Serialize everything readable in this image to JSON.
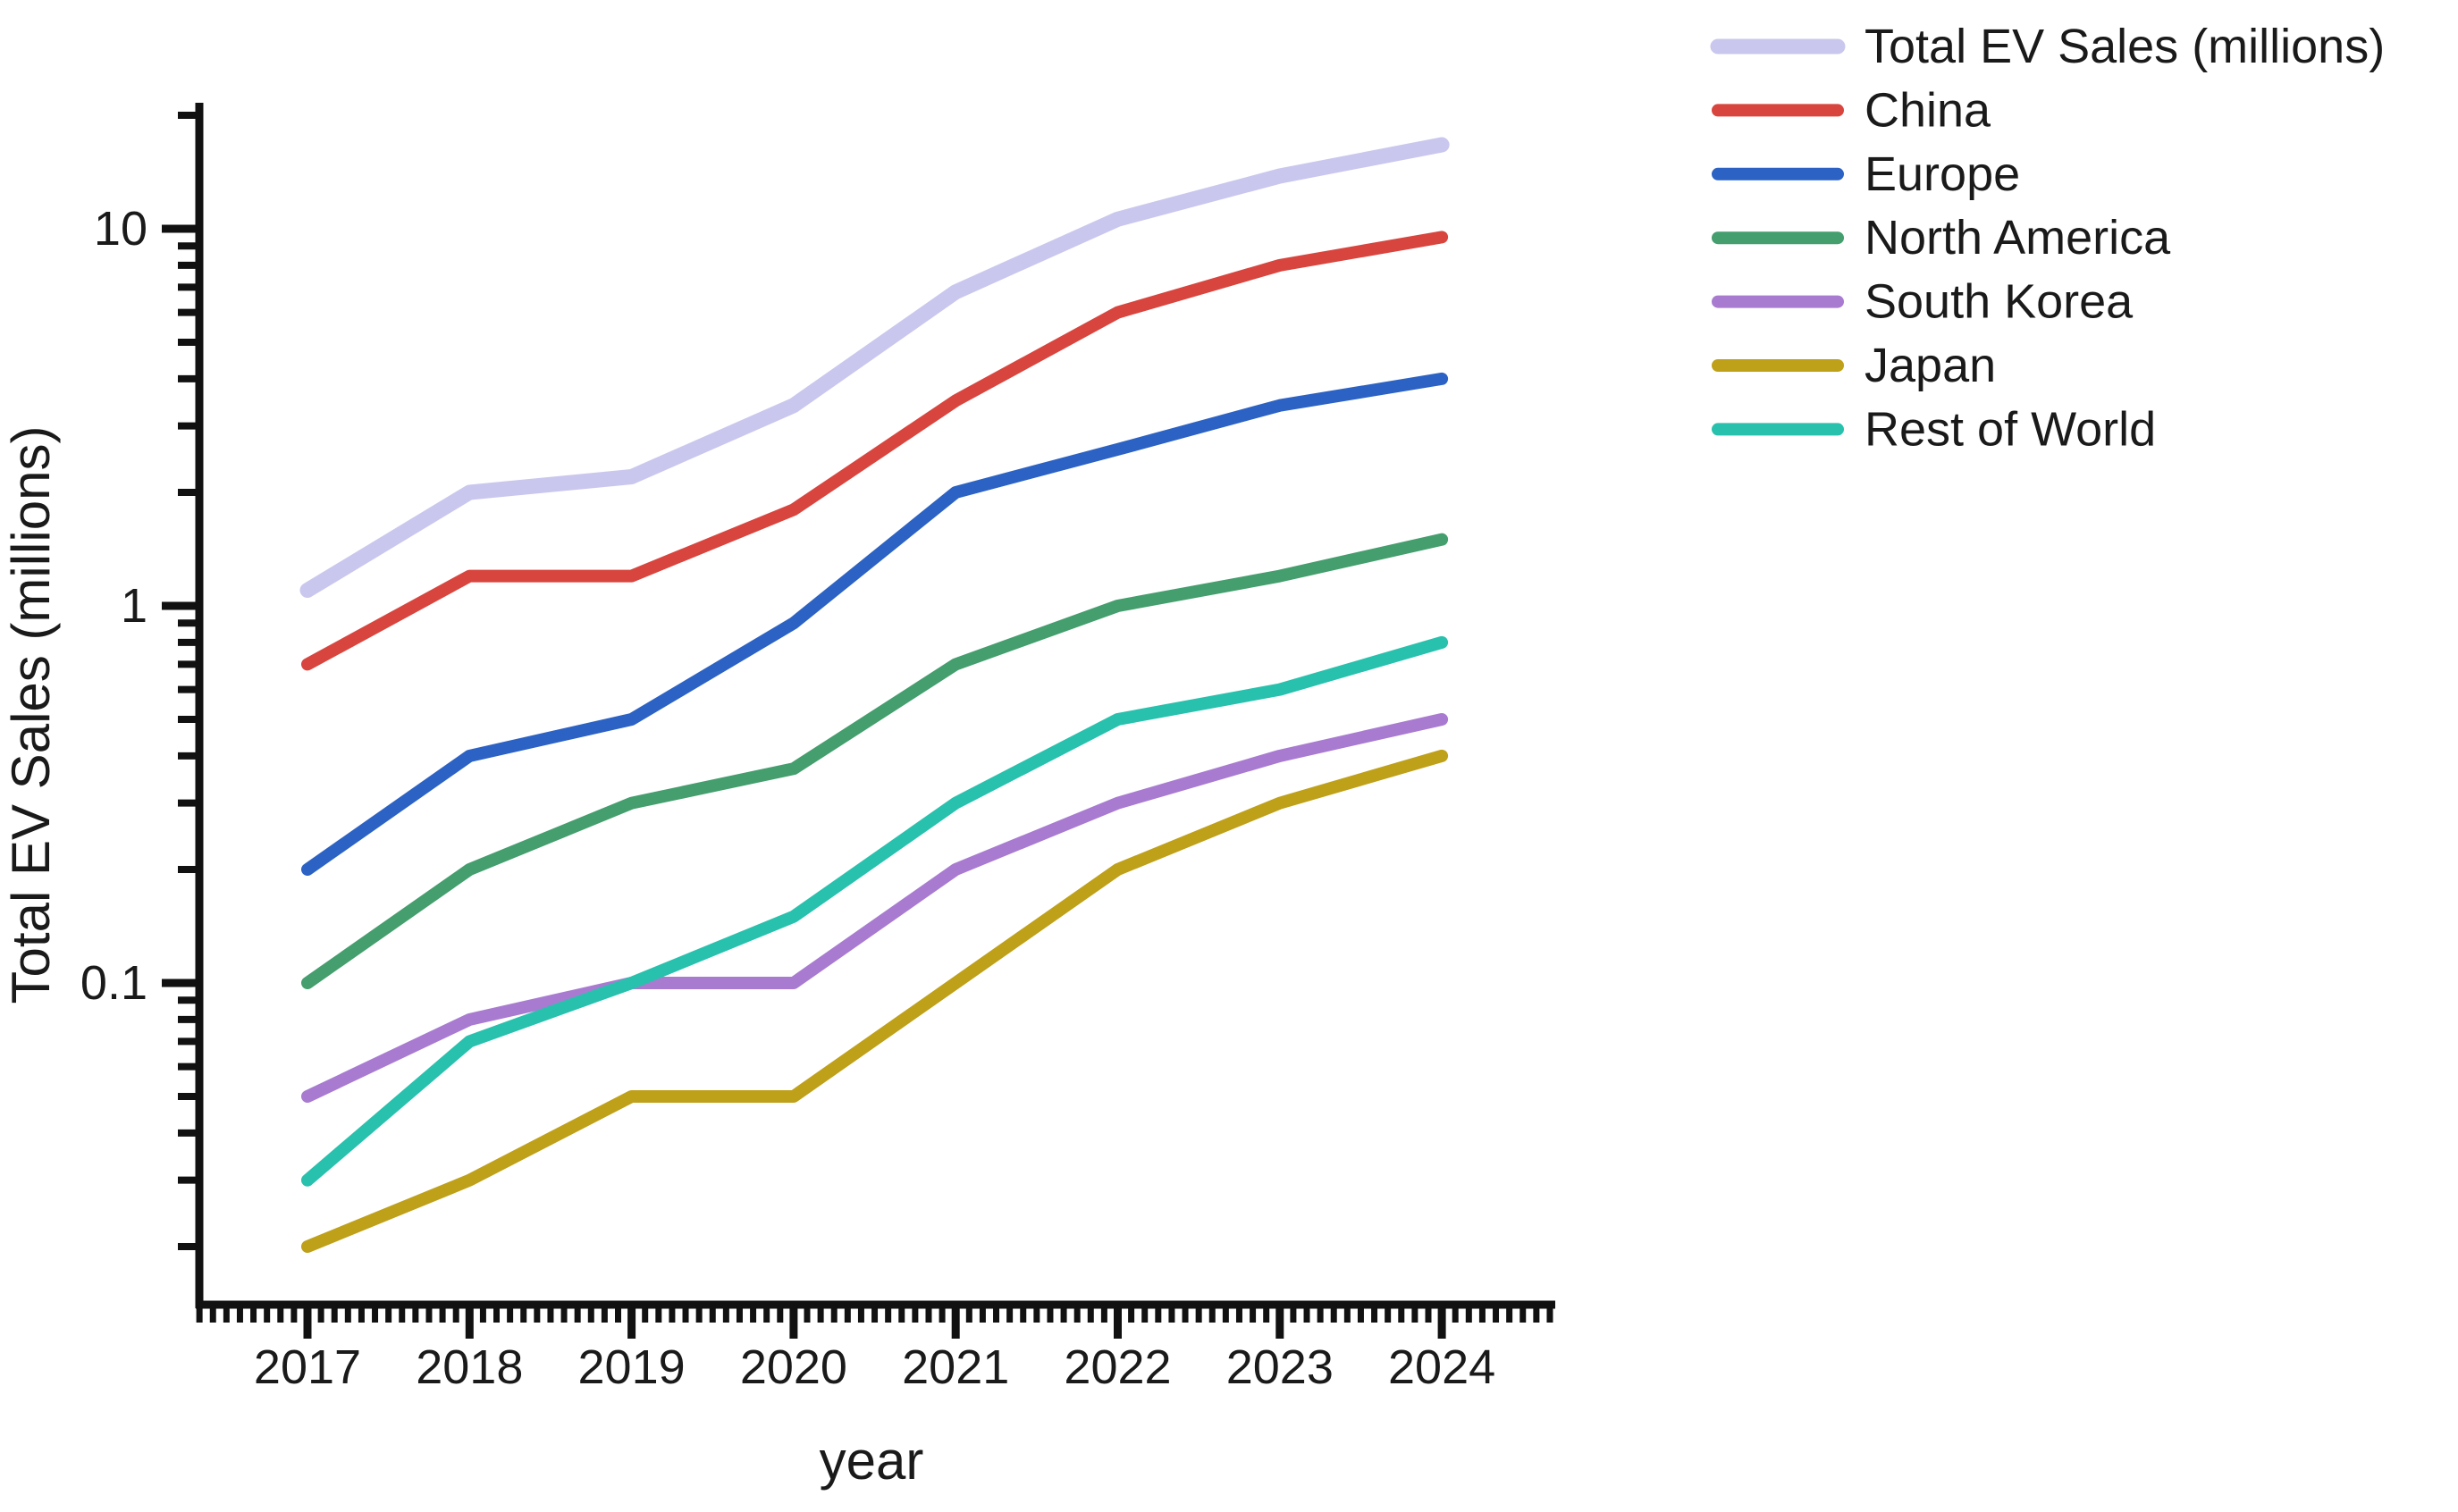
{
  "figure": {
    "background": "#ffffff",
    "axis_color": "#111111",
    "text_color": "#1a1a1a"
  },
  "chart_data": {
    "type": "line",
    "title": "",
    "xlabel": "year",
    "ylabel": "Total EV Sales (millions)",
    "x": [
      2017,
      2018,
      2019,
      2020,
      2021,
      2022,
      2023,
      2024
    ],
    "x_tick_labels": [
      "2017",
      "2018",
      "2019",
      "2020",
      "2021",
      "2022",
      "2023",
      "2024"
    ],
    "y_scale": "log",
    "y_ticks": [
      {
        "value": 10,
        "label": "10"
      },
      {
        "value": 1,
        "label": "1"
      },
      {
        "value": 0.1,
        "label": "0.1"
      }
    ],
    "ylim": [
      0.014,
      21.5
    ],
    "grid": false,
    "legend_position": "upper-right-outside",
    "series": [
      {
        "name": "Total EV Sales (millions)",
        "color": "#c9c7ee",
        "line_width": 17,
        "values": [
          1.1,
          2.0,
          2.2,
          3.4,
          6.8,
          10.6,
          13.8,
          16.7
        ]
      },
      {
        "name": "China",
        "color": "#d8453e",
        "line_width": 14,
        "values": [
          0.7,
          1.2,
          1.2,
          1.8,
          3.5,
          6.0,
          8.0,
          9.5
        ]
      },
      {
        "name": "Europe",
        "color": "#2c62c4",
        "line_width": 14,
        "values": [
          0.2,
          0.4,
          0.5,
          0.9,
          2.0,
          2.6,
          3.4,
          4.0
        ]
      },
      {
        "name": "North America",
        "color": "#449e6d",
        "line_width": 14,
        "values": [
          0.1,
          0.2,
          0.3,
          0.37,
          0.7,
          1.0,
          1.2,
          1.5
        ]
      },
      {
        "name": "South Korea",
        "color": "#a87bd1",
        "line_width": 14,
        "values": [
          0.05,
          0.08,
          0.1,
          0.1,
          0.2,
          0.3,
          0.4,
          0.5
        ]
      },
      {
        "name": "Japan",
        "color": "#bfa019",
        "line_width": 14,
        "values": [
          0.02,
          0.03,
          0.05,
          0.05,
          0.1,
          0.2,
          0.3,
          0.4
        ]
      },
      {
        "name": "Rest of World",
        "color": "#28c1ad",
        "line_width": 14,
        "values": [
          0.03,
          0.07,
          0.1,
          0.15,
          0.3,
          0.5,
          0.6,
          0.8
        ]
      }
    ]
  }
}
